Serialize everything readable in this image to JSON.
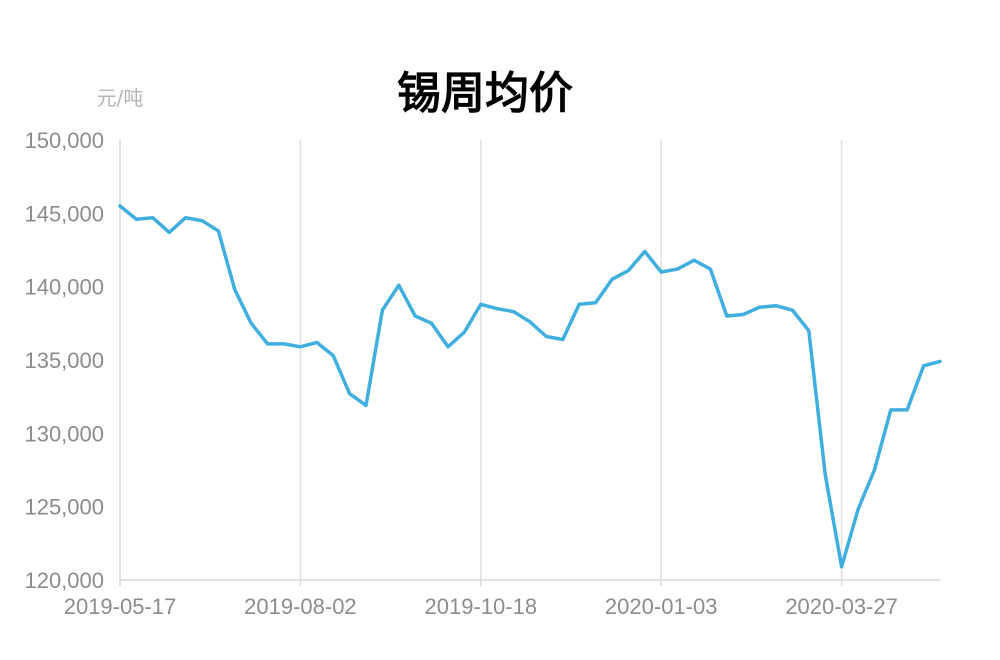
{
  "chart_data": {
    "type": "line",
    "title": "锡周均价",
    "unit_label": "元/吨",
    "xlabel": "",
    "ylabel": "",
    "ylim": [
      120000,
      150000
    ],
    "yticks": [
      150000,
      145000,
      140000,
      135000,
      130000,
      125000,
      120000
    ],
    "ytick_labels": [
      "150,000",
      "145,000",
      "140,000",
      "135,000",
      "130,000",
      "125,000",
      "120,000"
    ],
    "xtick_labels": [
      "2019-05-17",
      "2019-08-02",
      "2019-10-18",
      "2020-01-03",
      "2020-03-27"
    ],
    "xtick_index": [
      0,
      11,
      22,
      33,
      44
    ],
    "grid": "vertical",
    "legend": "none",
    "line_color": "#40aedf",
    "series": [
      {
        "values": [
          145500,
          144600,
          144700,
          143700,
          144700,
          144500,
          143800,
          139800,
          137500,
          136100,
          136100,
          135900,
          136200,
          135300,
          132700,
          131900,
          138400,
          140100,
          138000,
          137500,
          135900,
          136900,
          138800,
          138500,
          138300,
          137600,
          136600,
          136400,
          138800,
          138900,
          140500,
          141100,
          142400,
          141000,
          141200,
          141800,
          141200,
          138000,
          138100,
          138600,
          138700,
          138400,
          137000,
          127200,
          120900,
          124800,
          127500,
          131600,
          131600,
          134600,
          134900
        ]
      }
    ]
  }
}
